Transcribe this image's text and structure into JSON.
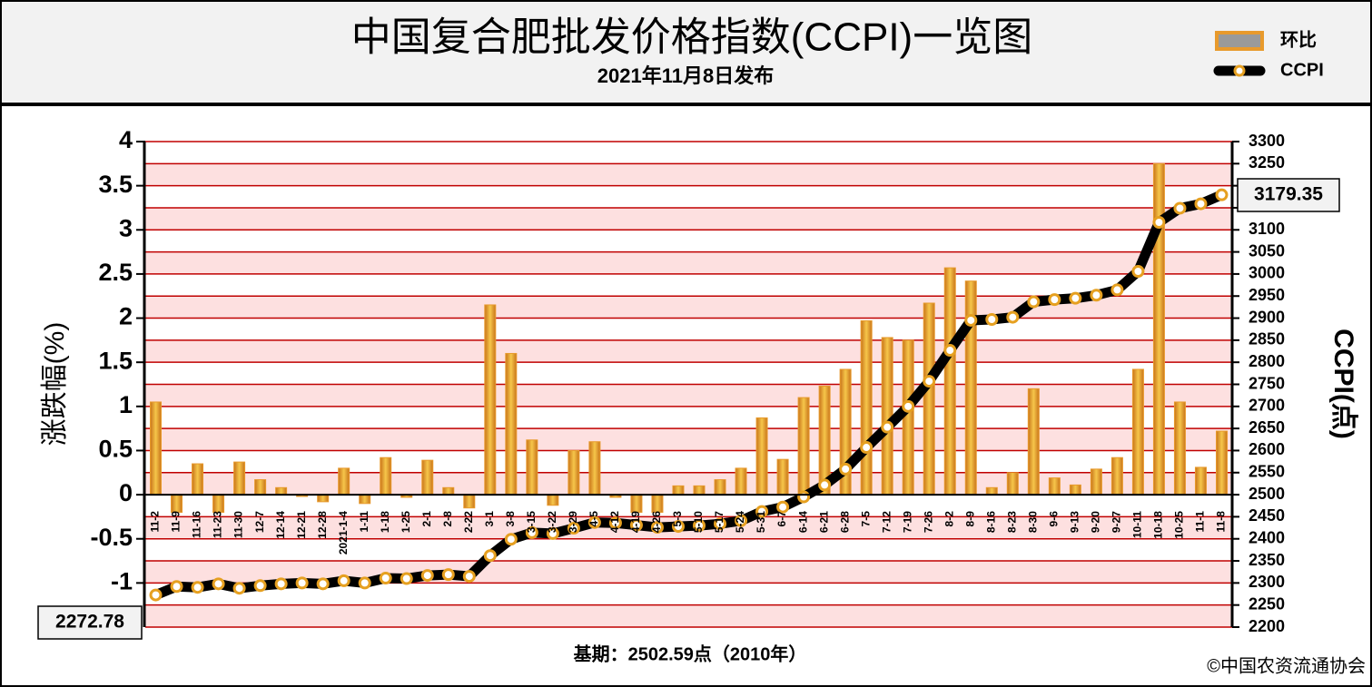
{
  "chart_data": {
    "type": "bar",
    "title": "中国复合肥批发价格指数(CCPI)一览图",
    "subtitle": "2021年11月8日发布",
    "y_label": "涨跌幅(%)",
    "y2_label": "CCPI(点)",
    "footnote": "基期：2502.59点（2010年）",
    "source": "©中国农资流通协会",
    "legend": "top-right",
    "grid": true,
    "categories": [
      "11-2",
      "11-9",
      "11-16",
      "11-23",
      "11-30",
      "12-7",
      "12-14",
      "12-21",
      "12-28",
      "2021-1-4",
      "1-11",
      "1-18",
      "1-25",
      "2-1",
      "2-8",
      "2-22",
      "3-1",
      "3-8",
      "3-15",
      "3-22",
      "3-29",
      "4-5",
      "4-12",
      "4-19",
      "4-26",
      "5-3",
      "5-10",
      "5-17",
      "5-24",
      "5-31",
      "6-7",
      "6-14",
      "6-21",
      "6-28",
      "7-5",
      "7-12",
      "7-19",
      "7-26",
      "8-2",
      "8-9",
      "8-16",
      "8-23",
      "8-30",
      "9-6",
      "9-13",
      "9-20",
      "9-27",
      "10-11",
      "10-18",
      "10-25",
      "11-1",
      "11-8"
    ],
    "series": [
      {
        "name": "环比",
        "type": "bar",
        "color": "#e89a2c",
        "values": [
          1.05,
          -0.2,
          0.35,
          -0.2,
          0.37,
          0.17,
          0.08,
          -0.02,
          -0.08,
          0.3,
          -0.1,
          0.42,
          -0.03,
          0.39,
          0.08,
          -0.15,
          2.15,
          1.6,
          0.62,
          -0.12,
          0.5,
          0.6,
          -0.03,
          -0.2,
          -0.2,
          0.1,
          0.1,
          0.17,
          0.3,
          0.87,
          0.4,
          1.1,
          1.23,
          1.42,
          1.97,
          1.78,
          1.75,
          2.17,
          2.57,
          2.42,
          0.08,
          0.25,
          1.2,
          0.19,
          0.11,
          0.29,
          0.42,
          1.42,
          3.75,
          1.05,
          0.31,
          0.72
        ]
      },
      {
        "name": "CCPI",
        "type": "line",
        "axis": "y2",
        "color": "#000000",
        "values": [
          2272.78,
          2292,
          2290,
          2298,
          2288,
          2294,
          2298,
          2300,
          2298,
          2305,
          2300,
          2311,
          2310,
          2317,
          2319,
          2315,
          2362,
          2399,
          2414,
          2412,
          2424,
          2437,
          2436,
          2431,
          2426,
          2428,
          2430,
          2434,
          2441,
          2462,
          2472,
          2495,
          2522,
          2558,
          2607,
          2653,
          2700,
          2757,
          2827,
          2895,
          2897,
          2902,
          2937,
          2942,
          2945,
          2952,
          2964,
          3006,
          3117,
          3149,
          3159,
          3179.35
        ]
      }
    ],
    "ylim": [
      -1.5,
      4
    ],
    "yticks": [
      4,
      3.5,
      3,
      2.5,
      2,
      1.5,
      1,
      0.5,
      0,
      -0.5,
      -1
    ],
    "y2lim": [
      2200,
      3300
    ],
    "y2ticks": [
      3300,
      3250,
      3200,
      3150,
      3100,
      3050,
      3000,
      2950,
      2900,
      2850,
      2800,
      2750,
      2700,
      2650,
      2600,
      2550,
      2500,
      2450,
      2400,
      2350,
      2300,
      2250,
      2200
    ]
  }
}
